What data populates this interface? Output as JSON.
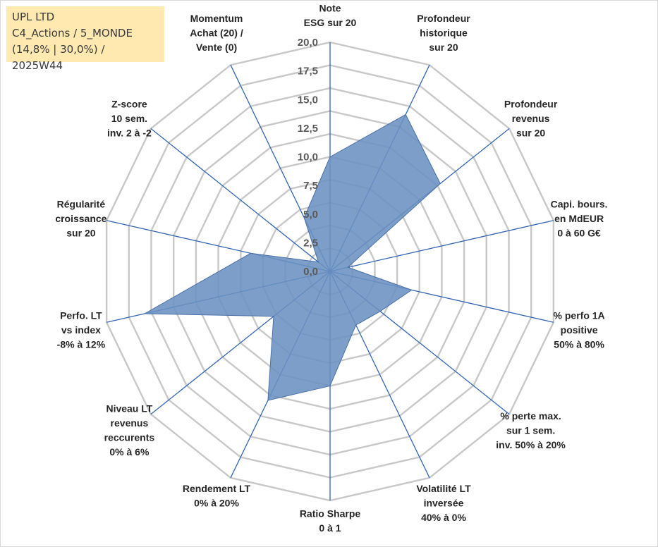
{
  "header": {
    "company": "UPL LTD",
    "portfolio": "C4_Actions / 5_MONDE",
    "params": "(14,8% | 30,0%) / 2025W44"
  },
  "chart_data": {
    "type": "radar",
    "title": "",
    "rmin": 0,
    "rmax": 20,
    "tick_step": 2.5,
    "tick_labels": [
      "0,0",
      "2,5",
      "5,0",
      "7,5",
      "10,0",
      "12,5",
      "15,0",
      "17,5",
      "20,0"
    ],
    "grid_rings": 10,
    "categories": [
      [
        "Note",
        "ESG sur 20"
      ],
      [
        "Profondeur",
        "historique",
        "sur 20"
      ],
      [
        "Profondeur",
        "revenus",
        "sur 20"
      ],
      [
        "Capi. bours.",
        "en MdEUR",
        "0 à 60 G€"
      ],
      [
        "% perfo 1A",
        "positive",
        "50% à 80%"
      ],
      [
        "% perte max.",
        "sur 1 sem.",
        "inv. 50% à 20%"
      ],
      [
        "Volatilité LT",
        "inversée",
        "40% à 0%"
      ],
      [
        "Ratio Sharpe",
        "0 à 1"
      ],
      [
        "Rendement LT",
        "0% à 20%"
      ],
      [
        "Niveau LT",
        "revenus",
        "reccurents",
        "0% à 6%"
      ],
      [
        "Perfo. LT",
        "vs index",
        "-8% à 12%"
      ],
      [
        "Régularité",
        "croissance",
        "sur 20"
      ],
      [
        "Z-score",
        "10 sem.",
        "inv. 2 à -2"
      ],
      [
        "Momentum",
        "Achat (20) /",
        "Vente (0)"
      ]
    ],
    "series": [
      {
        "name": "UPL LTD",
        "color": "#6b91c2",
        "values": [
          10.0,
          15.2,
          12.3,
          1.6,
          7.3,
          5.6,
          5.2,
          10.0,
          12.5,
          6.3,
          16.6,
          7.1,
          1.3,
          5.2
        ]
      }
    ]
  }
}
